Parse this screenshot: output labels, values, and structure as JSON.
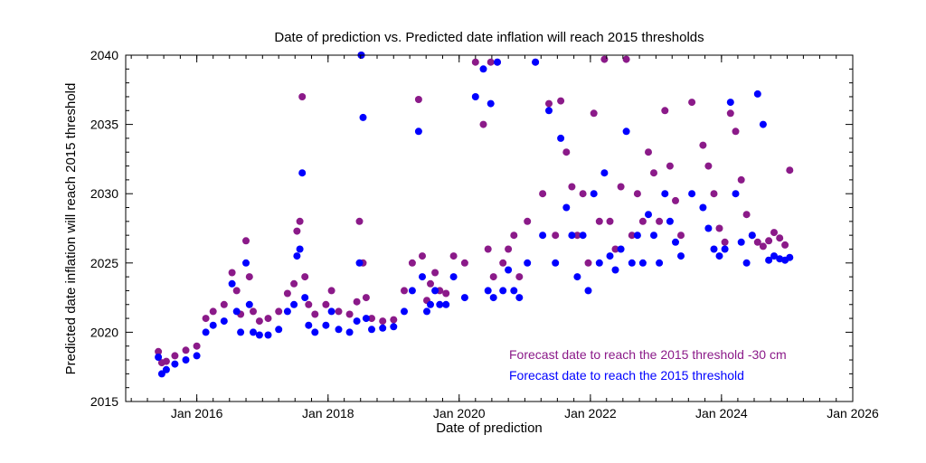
{
  "chart_data": {
    "type": "scatter",
    "title": "Date of prediction vs. Predicted date inflation will reach 2015 thresholds",
    "xlabel": "Date of prediction",
    "ylabel": "Predicted date inflation will reach 2015 threshold",
    "x_ticks": [
      "Jan 2016",
      "Jan 2018",
      "Jan 2020",
      "Jan 2022",
      "Jan 2024",
      "Jan 2026"
    ],
    "xlim": [
      "2014-12-01",
      "2026-01-01"
    ],
    "ylim": [
      2015,
      2040
    ],
    "y_ticks": [
      2015,
      2020,
      2025,
      2030,
      2035,
      2040
    ],
    "grid": false,
    "legend_position": "bottom-right",
    "series": [
      {
        "name": "Forecast date to reach the 2015 threshold -30 cm",
        "color": "#8B1A89",
        "x": [
          "2015-06-01",
          "2015-06-20",
          "2015-07-15",
          "2015-09-01",
          "2015-11-01",
          "2016-01-01",
          "2016-02-20",
          "2016-04-01",
          "2016-06-01",
          "2016-07-15",
          "2016-08-10",
          "2016-09-01",
          "2016-10-01",
          "2016-10-20",
          "2016-11-10",
          "2016-12-15",
          "2017-02-01",
          "2017-04-01",
          "2017-05-20",
          "2017-06-25",
          "2017-07-12",
          "2017-07-28",
          "2017-08-10",
          "2017-08-25",
          "2017-09-15",
          "2017-10-20",
          "2017-12-20",
          "2018-01-20",
          "2018-03-01",
          "2018-05-01",
          "2018-06-10",
          "2018-06-25",
          "2018-07-05",
          "2018-07-15",
          "2018-08-01",
          "2018-09-01",
          "2018-11-01",
          "2019-01-01",
          "2019-03-01",
          "2019-04-15",
          "2019-05-20",
          "2019-06-10",
          "2019-07-05",
          "2019-07-25",
          "2019-08-20",
          "2019-09-15",
          "2019-10-20",
          "2019-12-01",
          "2020-02-01",
          "2020-04-01",
          "2020-05-15",
          "2020-06-10",
          "2020-06-25",
          "2020-07-10",
          "2020-08-01",
          "2020-09-01",
          "2020-10-01",
          "2020-11-01",
          "2020-12-01",
          "2021-01-15",
          "2021-03-01",
          "2021-04-10",
          "2021-05-15",
          "2021-06-20",
          "2021-07-20",
          "2021-08-20",
          "2021-09-20",
          "2021-10-20",
          "2021-11-20",
          "2021-12-20",
          "2022-01-20",
          "2022-02-20",
          "2022-03-20",
          "2022-04-20",
          "2022-05-20",
          "2022-06-20",
          "2022-07-20",
          "2022-08-20",
          "2022-09-20",
          "2022-10-20",
          "2022-11-20",
          "2022-12-20",
          "2023-01-20",
          "2023-02-20",
          "2023-03-20",
          "2023-04-20",
          "2023-05-20",
          "2023-07-20",
          "2023-09-20",
          "2023-10-20",
          "2023-11-20",
          "2023-12-20",
          "2024-01-20",
          "2024-02-20",
          "2024-03-20",
          "2024-04-20",
          "2024-05-20",
          "2024-06-20",
          "2024-07-20",
          "2024-08-20",
          "2024-09-20",
          "2024-10-20",
          "2024-11-20",
          "2024-12-20",
          "2025-01-15"
        ],
        "y": [
          2018.6,
          2017.8,
          2017.9,
          2018.3,
          2018.7,
          2019.0,
          2021.0,
          2021.5,
          2022.0,
          2024.3,
          2023.0,
          2021.3,
          2026.6,
          2024.0,
          2021.5,
          2020.8,
          2021.0,
          2021.5,
          2022.8,
          2023.5,
          2027.3,
          2028.0,
          2037.0,
          2024.0,
          2022.0,
          2021.3,
          2022.0,
          2023.0,
          2021.5,
          2021.3,
          2022.2,
          2028.0,
          2040.0,
          2025.0,
          2022.5,
          2021.0,
          2020.8,
          2020.9,
          2023.0,
          2025.0,
          2036.8,
          2025.5,
          2022.3,
          2023.5,
          2024.3,
          2023.0,
          2022.8,
          2025.5,
          2025.0,
          2039.5,
          2035.0,
          2026.0,
          2039.5,
          2024.0,
          2039.5,
          2025.0,
          2026.0,
          2027.0,
          2024.0,
          2028.0,
          2039.5,
          2030.0,
          2036.5,
          2027.0,
          2036.7,
          2033.0,
          2030.5,
          2027.0,
          2030.0,
          2025.0,
          2035.8,
          2028.0,
          2039.7,
          2028.0,
          2026.0,
          2030.5,
          2039.7,
          2027.0,
          2030.0,
          2028.0,
          2033.0,
          2031.5,
          2028.0,
          2036.0,
          2032.0,
          2029.5,
          2027.0,
          2036.6,
          2033.5,
          2032.0,
          2030.0,
          2027.5,
          2026.5,
          2035.8,
          2034.5,
          2031.0,
          2028.5,
          2027.0,
          2026.5,
          2026.2,
          2026.6,
          2027.2,
          2026.8,
          2026.3,
          2031.7
        ]
      },
      {
        "name": "Forecast date to reach the 2015 threshold",
        "color": "#0000FF",
        "x": [
          "2015-06-01",
          "2015-06-20",
          "2015-07-15",
          "2015-09-01",
          "2015-11-01",
          "2016-01-01",
          "2016-02-20",
          "2016-04-01",
          "2016-06-01",
          "2016-07-15",
          "2016-08-10",
          "2016-09-01",
          "2016-10-01",
          "2016-10-20",
          "2016-11-10",
          "2016-12-15",
          "2017-02-01",
          "2017-04-01",
          "2017-05-20",
          "2017-06-25",
          "2017-07-12",
          "2017-07-28",
          "2017-08-10",
          "2017-08-25",
          "2017-09-15",
          "2017-10-20",
          "2017-12-20",
          "2018-01-20",
          "2018-03-01",
          "2018-05-01",
          "2018-06-10",
          "2018-06-25",
          "2018-07-05",
          "2018-07-15",
          "2018-08-01",
          "2018-09-01",
          "2018-11-01",
          "2019-01-01",
          "2019-03-01",
          "2019-04-15",
          "2019-05-20",
          "2019-06-10",
          "2019-07-05",
          "2019-07-25",
          "2019-08-20",
          "2019-09-15",
          "2019-10-20",
          "2019-12-01",
          "2020-02-01",
          "2020-04-01",
          "2020-05-15",
          "2020-06-10",
          "2020-06-25",
          "2020-07-10",
          "2020-08-01",
          "2020-09-01",
          "2020-10-01",
          "2020-11-01",
          "2020-12-01",
          "2021-01-15",
          "2021-03-01",
          "2021-04-10",
          "2021-05-15",
          "2021-06-20",
          "2021-07-20",
          "2021-08-20",
          "2021-09-20",
          "2021-10-20",
          "2021-11-20",
          "2021-12-20",
          "2022-01-20",
          "2022-02-20",
          "2022-03-20",
          "2022-04-20",
          "2022-05-20",
          "2022-06-20",
          "2022-07-20",
          "2022-08-20",
          "2022-09-20",
          "2022-10-20",
          "2022-11-20",
          "2022-12-20",
          "2023-01-20",
          "2023-02-20",
          "2023-03-20",
          "2023-04-20",
          "2023-05-20",
          "2023-07-20",
          "2023-09-20",
          "2023-10-20",
          "2023-11-20",
          "2023-12-20",
          "2024-01-20",
          "2024-02-20",
          "2024-03-20",
          "2024-04-20",
          "2024-05-20",
          "2024-06-20",
          "2024-07-20",
          "2024-08-20",
          "2024-09-20",
          "2024-10-20",
          "2024-11-20",
          "2024-12-20",
          "2025-01-15"
        ],
        "y": [
          2018.2,
          2017.0,
          2017.3,
          2017.7,
          2018.0,
          2018.3,
          2020.0,
          2020.5,
          2020.8,
          2023.5,
          2021.5,
          2020.0,
          2025.0,
          2022.0,
          2020.0,
          2019.8,
          2019.8,
          2020.2,
          2021.5,
          2022.0,
          2025.5,
          2026.0,
          2031.5,
          2022.5,
          2020.5,
          2020.0,
          2020.5,
          2021.5,
          2020.2,
          2020.0,
          2020.8,
          2025.0,
          2040.0,
          2035.5,
          2021.0,
          2020.2,
          2020.3,
          2020.4,
          2021.5,
          2023.0,
          2034.5,
          2024.0,
          2021.5,
          2022.0,
          2023.0,
          2022.0,
          2022.0,
          2024.0,
          2022.5,
          2037.0,
          2039.0,
          2023.0,
          2036.5,
          2022.5,
          2039.5,
          2023.0,
          2024.5,
          2023.0,
          2022.5,
          2025.0,
          2039.5,
          2027.0,
          2036.0,
          2025.0,
          2034.0,
          2029.0,
          2027.0,
          2024.0,
          2027.0,
          2023.0,
          2030.0,
          2025.0,
          2031.5,
          2025.5,
          2024.5,
          2026.0,
          2034.5,
          2025.0,
          2027.0,
          2025.0,
          2028.5,
          2027.0,
          2025.0,
          2030.0,
          2028.0,
          2026.5,
          2025.5,
          2030.0,
          2029.0,
          2027.5,
          2026.0,
          2025.5,
          2026.0,
          2036.6,
          2030.0,
          2026.5,
          2025.0,
          2027.0,
          2037.2,
          2035.0,
          2025.2,
          2025.5,
          2025.3,
          2025.2,
          2025.4
        ]
      }
    ]
  }
}
